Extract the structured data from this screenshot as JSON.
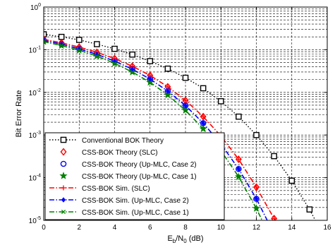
{
  "chart_data": {
    "type": "line",
    "xlabel": {
      "base": "E",
      "sub1": "b",
      "mid": "/N",
      "sub2": "0",
      "tail": " (dB)"
    },
    "ylabel": "Bit Error Rate",
    "xlim": [
      0,
      16
    ],
    "ylim": [
      1e-05,
      1
    ],
    "yscale": "log",
    "grid": true,
    "grid_style": "dashed",
    "legend_position": "bottom-left",
    "xticks": [
      0,
      2,
      4,
      6,
      8,
      10,
      12,
      14,
      16
    ],
    "yticks": [
      {
        "base": "10",
        "exp": "0",
        "value": 1
      },
      {
        "base": "10",
        "exp": "-1",
        "value": 0.1
      },
      {
        "base": "10",
        "exp": "-2",
        "value": 0.01
      },
      {
        "base": "10",
        "exp": "-3",
        "value": 0.001
      },
      {
        "base": "10",
        "exp": "-4",
        "value": 0.0001
      },
      {
        "base": "10",
        "exp": "-5",
        "value": 1e-05
      }
    ],
    "series": [
      {
        "name": "Conventional BOK Theory",
        "color": "#000000",
        "marker": "square",
        "dash": "dotted",
        "kind": "both",
        "x": [
          0,
          1,
          2,
          3,
          4,
          5,
          6,
          7,
          8,
          9,
          10,
          11,
          12,
          13,
          14,
          15,
          16
        ],
        "y": [
          0.23,
          0.2,
          0.17,
          0.135,
          0.105,
          0.077,
          0.054,
          0.036,
          0.022,
          0.0125,
          0.0062,
          0.0027,
          0.001,
          0.00032,
          8.5e-05,
          1.8e-05,
          3e-06
        ]
      },
      {
        "name": "CSS-BOK Theory (SLC)",
        "color": "#ff0000",
        "marker": "diamond",
        "dash": "none",
        "kind": "marker",
        "x": [
          0,
          1,
          2,
          3,
          4,
          5,
          6,
          7,
          8,
          9,
          10,
          11,
          12,
          13
        ],
        "y": [
          0.175,
          0.145,
          0.115,
          0.087,
          0.062,
          0.041,
          0.025,
          0.0135,
          0.0065,
          0.0027,
          0.00095,
          0.00027,
          6e-05,
          1.1e-05
        ]
      },
      {
        "name": "CSS-BOK Theory (Up-MLC, Case 2)",
        "color": "#0000ff",
        "marker": "circle",
        "dash": "none",
        "kind": "marker",
        "x": [
          0,
          1,
          2,
          3,
          4,
          5,
          6,
          7,
          8,
          9,
          10,
          11,
          12
        ],
        "y": [
          0.165,
          0.135,
          0.105,
          0.078,
          0.054,
          0.035,
          0.0205,
          0.0107,
          0.0049,
          0.0019,
          0.00062,
          0.00016,
          3.2e-05
        ]
      },
      {
        "name": "CSS-BOK Theory (Up-MLC, Case 1)",
        "color": "#008000",
        "marker": "star",
        "dash": "none",
        "kind": "marker",
        "x": [
          0,
          1,
          2,
          3,
          4,
          5,
          6,
          7,
          8,
          9,
          10,
          11,
          12
        ],
        "y": [
          0.155,
          0.125,
          0.097,
          0.071,
          0.048,
          0.03,
          0.0172,
          0.0087,
          0.0038,
          0.0014,
          0.00043,
          0.000105,
          1.9e-05
        ]
      },
      {
        "name": "CSS-BOK Sim. (SLC)",
        "color": "#ff0000",
        "marker": "plus",
        "dash": "dashdot",
        "kind": "line",
        "x": [
          0,
          1,
          2,
          3,
          4,
          5,
          6,
          7,
          8,
          9,
          10,
          11,
          12,
          13,
          14
        ],
        "y": [
          0.175,
          0.145,
          0.115,
          0.087,
          0.062,
          0.041,
          0.025,
          0.0135,
          0.0065,
          0.0027,
          0.00095,
          0.00027,
          6e-05,
          1.1e-05,
          1.5e-06
        ]
      },
      {
        "name": "CSS-BOK Sim. (Up-MLC, Case 2)",
        "color": "#0000ff",
        "marker": "filled-diamond",
        "dash": "dashdot",
        "kind": "line",
        "x": [
          0,
          1,
          2,
          3,
          4,
          5,
          6,
          7,
          8,
          9,
          10,
          11,
          12,
          13
        ],
        "y": [
          0.165,
          0.135,
          0.105,
          0.078,
          0.054,
          0.035,
          0.0205,
          0.0107,
          0.0049,
          0.0019,
          0.00062,
          0.00016,
          3.2e-05,
          4.8e-06
        ]
      },
      {
        "name": "CSS-BOK Sim. (Up-MLC, Case 1)",
        "color": "#008000",
        "marker": "x",
        "dash": "dashdot",
        "kind": "line",
        "x": [
          0,
          1,
          2,
          3,
          4,
          5,
          6,
          7,
          8,
          9,
          10,
          11,
          12,
          13
        ],
        "y": [
          0.155,
          0.125,
          0.097,
          0.071,
          0.048,
          0.03,
          0.0172,
          0.0087,
          0.0038,
          0.0014,
          0.00043,
          0.000105,
          1.9e-05,
          2.6e-06
        ]
      }
    ]
  }
}
